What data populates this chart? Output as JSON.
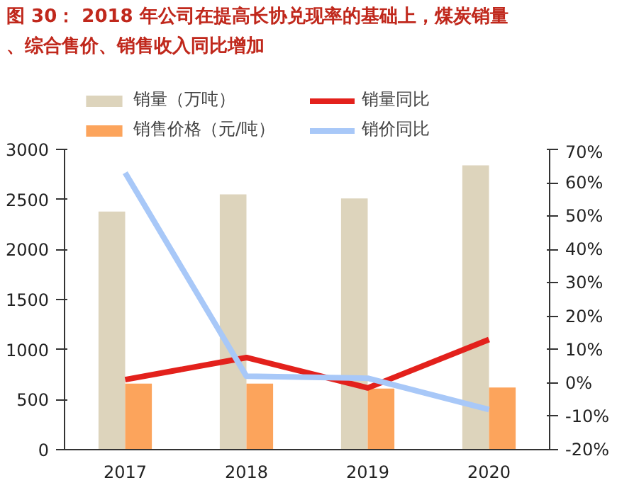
{
  "chart_data": {
    "type": "bar",
    "title": "图 30： 2018 年公司在提高长协兑现率的基础上，煤炭销量、综合售价、销售收入同比增加",
    "categories": [
      "2017",
      "2018",
      "2019",
      "2020"
    ],
    "series": [
      {
        "name": "销量（万吨）",
        "color": "#ddd4bc",
        "values": [
          2380,
          2550,
          2510,
          2840
        ]
      },
      {
        "name": "销售价格（元/吨）",
        "color": "#fca45c",
        "values": [
          660,
          660,
          610,
          620
        ]
      },
      {
        "name": "销量同比",
        "type": "line",
        "axis": "y2",
        "color": "#e3211c",
        "values": [
          1,
          7.6,
          -1.5,
          13
        ]
      },
      {
        "name": "销价同比",
        "type": "line",
        "axis": "y2",
        "color": "#a8c8f8",
        "values": [
          63,
          2,
          1.4,
          -8
        ]
      }
    ],
    "ylim": [
      0,
      3000
    ],
    "yticks": [
      0,
      500,
      1000,
      1500,
      2000,
      2500,
      3000
    ],
    "y2lim": [
      -20,
      70
    ],
    "y2ticks": [
      {
        "value": -20,
        "label": "-20%"
      },
      {
        "value": -10,
        "label": "-10%"
      },
      {
        "value": 0,
        "label": "0%"
      },
      {
        "value": 10,
        "label": "10%"
      },
      {
        "value": 20,
        "label": "20%"
      },
      {
        "value": 30,
        "label": "30%"
      },
      {
        "value": 40,
        "label": "40%"
      },
      {
        "value": 50,
        "label": "50%"
      },
      {
        "value": 60,
        "label": "60%"
      },
      {
        "value": 70,
        "label": "70%"
      }
    ],
    "legend": "top",
    "grid": false,
    "marker": "none",
    "line_style": "solid"
  }
}
